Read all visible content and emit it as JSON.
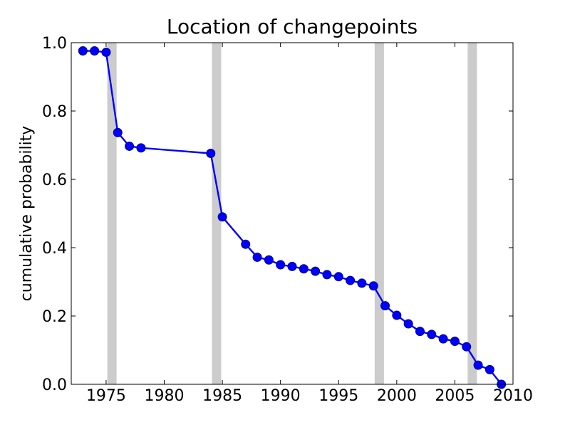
{
  "chart_data": {
    "type": "line",
    "title": "Location of changepoints",
    "xlabel": "",
    "ylabel": "cumulative probability",
    "xlim": [
      1972,
      2010
    ],
    "ylim": [
      0.0,
      1.0
    ],
    "x_ticks": [
      1975,
      1980,
      1985,
      1990,
      1995,
      2000,
      2005,
      2010
    ],
    "y_ticks": [
      0.0,
      0.2,
      0.4,
      0.6,
      0.8,
      1.0
    ],
    "x_tick_labels": [
      "1975",
      "1980",
      "1985",
      "1990",
      "1995",
      "2000",
      "2005",
      "2010"
    ],
    "y_tick_labels": [
      "0.0",
      "0.2",
      "0.4",
      "0.6",
      "0.8",
      "1.0"
    ],
    "grid": false,
    "changepoint_bands": [
      {
        "start": 1975.1,
        "end": 1975.9
      },
      {
        "start": 1984.1,
        "end": 1984.9
      },
      {
        "start": 1998.1,
        "end": 1998.9
      },
      {
        "start": 2006.1,
        "end": 2006.9
      }
    ],
    "series": [
      {
        "color": "#0000ff",
        "marker": "circle",
        "x": [
          1973,
          1974,
          1975,
          1976,
          1977,
          1978,
          1984,
          1985,
          1987,
          1988,
          1989,
          1990,
          1991,
          1992,
          1993,
          1994,
          1995,
          1996,
          1997,
          1998,
          1999,
          2000,
          2001,
          2002,
          2003,
          2004,
          2005,
          2006,
          2007,
          2008,
          2009
        ],
        "y": [
          0.976,
          0.976,
          0.972,
          0.737,
          0.697,
          0.692,
          0.676,
          0.49,
          0.41,
          0.372,
          0.364,
          0.35,
          0.345,
          0.338,
          0.331,
          0.321,
          0.315,
          0.304,
          0.296,
          0.288,
          0.23,
          0.202,
          0.177,
          0.155,
          0.146,
          0.133,
          0.126,
          0.11,
          0.056,
          0.043,
          0.0
        ]
      }
    ]
  }
}
